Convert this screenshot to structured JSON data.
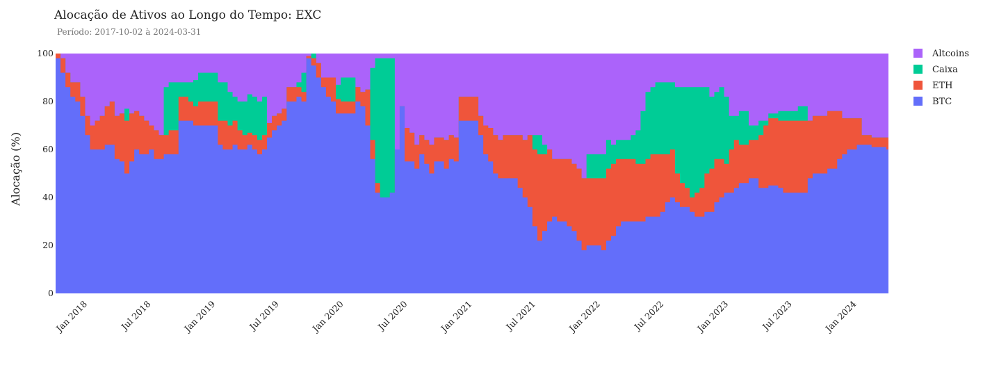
{
  "chart_data": {
    "type": "area",
    "stacked": true,
    "step": true,
    "title": "Alocação de Ativos ao Longo do Tempo: EXC",
    "subtitle": "Período: 2017-10-02 à 2024-03-31",
    "xlabel": "",
    "ylabel": "Alocação (%)",
    "xlim": [
      "2017-10-02",
      "2024-03-31"
    ],
    "ylim": [
      0,
      100
    ],
    "yticks": [
      0,
      20,
      40,
      60,
      80,
      100
    ],
    "xticks": [
      {
        "date": "2018-01-01",
        "label": "Jan 2018"
      },
      {
        "date": "2018-07-01",
        "label": "Jul 2018"
      },
      {
        "date": "2019-01-01",
        "label": "Jan 2019"
      },
      {
        "date": "2019-07-01",
        "label": "Jul 2019"
      },
      {
        "date": "2020-01-01",
        "label": "Jan 2020"
      },
      {
        "date": "2020-07-01",
        "label": "Jul 2020"
      },
      {
        "date": "2021-01-01",
        "label": "Jan 2021"
      },
      {
        "date": "2021-07-01",
        "label": "Jul 2021"
      },
      {
        "date": "2022-01-01",
        "label": "Jan 2022"
      },
      {
        "date": "2022-07-01",
        "label": "Jul 2022"
      },
      {
        "date": "2023-01-01",
        "label": "Jan 2023"
      },
      {
        "date": "2023-07-01",
        "label": "Jul 2023"
      },
      {
        "date": "2024-01-01",
        "label": "Jan 2024"
      }
    ],
    "legend": {
      "placement": "top-right",
      "order": [
        "Altcoins",
        "Caixa",
        "ETH",
        "BTC"
      ]
    },
    "colors": {
      "BTC": "#636efa",
      "ETH": "#ef553b",
      "Caixa": "#00cc96",
      "Altcoins": "#ab63fa"
    },
    "dates": [
      "2017-10-02",
      "2017-10-16",
      "2017-10-30",
      "2017-11-13",
      "2017-11-27",
      "2017-12-11",
      "2017-12-25",
      "2018-01-08",
      "2018-01-22",
      "2018-02-05",
      "2018-02-19",
      "2018-03-05",
      "2018-03-19",
      "2018-04-02",
      "2018-04-16",
      "2018-04-30",
      "2018-05-14",
      "2018-05-28",
      "2018-06-11",
      "2018-06-25",
      "2018-07-09",
      "2018-07-23",
      "2018-08-06",
      "2018-08-20",
      "2018-09-03",
      "2018-09-17",
      "2018-10-01",
      "2018-10-15",
      "2018-10-29",
      "2018-11-12",
      "2018-11-26",
      "2018-12-10",
      "2018-12-24",
      "2019-01-07",
      "2019-01-21",
      "2019-02-04",
      "2019-02-18",
      "2019-03-04",
      "2019-03-18",
      "2019-04-01",
      "2019-04-15",
      "2019-04-29",
      "2019-05-13",
      "2019-05-27",
      "2019-06-10",
      "2019-06-24",
      "2019-07-08",
      "2019-07-22",
      "2019-08-05",
      "2019-08-19",
      "2019-09-02",
      "2019-09-16",
      "2019-09-30",
      "2019-10-14",
      "2019-10-28",
      "2019-11-11",
      "2019-11-25",
      "2019-12-09",
      "2019-12-23",
      "2020-01-06",
      "2020-01-20",
      "2020-02-03",
      "2020-02-17",
      "2020-03-02",
      "2020-03-16",
      "2020-03-30",
      "2020-04-13",
      "2020-04-27",
      "2020-05-11",
      "2020-05-25",
      "2020-06-08",
      "2020-06-22",
      "2020-07-06",
      "2020-07-20",
      "2020-08-03",
      "2020-08-17",
      "2020-08-31",
      "2020-09-14",
      "2020-09-28",
      "2020-10-12",
      "2020-10-26",
      "2020-11-09",
      "2020-11-23",
      "2020-12-07",
      "2020-12-21",
      "2021-01-04",
      "2021-01-18",
      "2021-02-01",
      "2021-02-15",
      "2021-03-01",
      "2021-03-15",
      "2021-03-29",
      "2021-04-12",
      "2021-04-26",
      "2021-05-10",
      "2021-05-24",
      "2021-06-07",
      "2021-06-21",
      "2021-07-05",
      "2021-07-19",
      "2021-08-02",
      "2021-08-16",
      "2021-08-30",
      "2021-09-13",
      "2021-09-27",
      "2021-10-11",
      "2021-10-25",
      "2021-11-08",
      "2021-11-22",
      "2021-12-06",
      "2021-12-20",
      "2022-01-03",
      "2022-01-17",
      "2022-01-31",
      "2022-02-14",
      "2022-02-28",
      "2022-03-14",
      "2022-03-28",
      "2022-04-11",
      "2022-04-25",
      "2022-05-09",
      "2022-05-23",
      "2022-06-06",
      "2022-06-20",
      "2022-07-04",
      "2022-07-18",
      "2022-08-01",
      "2022-08-15",
      "2022-08-29",
      "2022-09-12",
      "2022-09-26",
      "2022-10-10",
      "2022-10-24",
      "2022-11-07",
      "2022-11-21",
      "2022-12-05",
      "2022-12-19",
      "2023-01-02",
      "2023-01-16",
      "2023-01-30",
      "2023-02-13",
      "2023-02-27",
      "2023-03-13",
      "2023-03-27",
      "2023-04-10",
      "2023-04-24",
      "2023-05-08",
      "2023-05-22",
      "2023-06-05",
      "2023-06-19",
      "2023-07-03",
      "2023-07-17",
      "2023-07-31",
      "2023-08-14",
      "2023-08-28",
      "2023-09-11",
      "2023-09-25",
      "2023-10-09",
      "2023-10-23",
      "2023-11-06",
      "2023-11-20",
      "2023-12-04",
      "2023-12-18",
      "2024-01-01",
      "2024-01-15",
      "2024-01-29",
      "2024-02-12",
      "2024-02-26",
      "2024-03-11",
      "2024-03-25"
    ],
    "series": [
      {
        "name": "BTC",
        "values": [
          98,
          92,
          86,
          82,
          80,
          74,
          66,
          60,
          60,
          60,
          62,
          62,
          56,
          55,
          50,
          55,
          60,
          58,
          58,
          60,
          56,
          56,
          58,
          58,
          58,
          72,
          72,
          72,
          70,
          70,
          70,
          70,
          70,
          62,
          60,
          60,
          62,
          60,
          60,
          62,
          60,
          58,
          60,
          65,
          68,
          70,
          72,
          80,
          80,
          82,
          80,
          98,
          95,
          90,
          86,
          82,
          80,
          75,
          75,
          75,
          75,
          80,
          78,
          70,
          56,
          42,
          40,
          40,
          42,
          60,
          78,
          55,
          55,
          52,
          58,
          54,
          50,
          55,
          55,
          52,
          56,
          55,
          72,
          72,
          72,
          72,
          66,
          58,
          55,
          50,
          48,
          48,
          48,
          48,
          44,
          40,
          36,
          28,
          22,
          26,
          30,
          32,
          30,
          30,
          28,
          26,
          22,
          18,
          20,
          20,
          20,
          18,
          22,
          24,
          28,
          30,
          30,
          30,
          30,
          30,
          32,
          32,
          32,
          34,
          38,
          40,
          38,
          36,
          36,
          34,
          32,
          32,
          34,
          34,
          38,
          40,
          42,
          42,
          44,
          46,
          46,
          48,
          48,
          44,
          44,
          45,
          45,
          44,
          42,
          42,
          42,
          42,
          42,
          48,
          50,
          50,
          50,
          52,
          52,
          56,
          58,
          60,
          60,
          62,
          62,
          62,
          61,
          61,
          61,
          60
        ]
      },
      {
        "name": "ETH",
        "values": [
          2,
          6,
          6,
          6,
          8,
          8,
          8,
          10,
          12,
          14,
          16,
          18,
          18,
          20,
          22,
          20,
          16,
          16,
          14,
          10,
          12,
          10,
          8,
          10,
          10,
          10,
          10,
          8,
          8,
          10,
          10,
          10,
          10,
          10,
          12,
          10,
          10,
          8,
          6,
          5,
          6,
          6,
          6,
          6,
          6,
          5,
          5,
          6,
          6,
          4,
          4,
          1,
          3,
          6,
          4,
          8,
          10,
          6,
          5,
          5,
          5,
          6,
          6,
          15,
          8,
          4,
          0,
          0,
          0,
          0,
          0,
          14,
          12,
          10,
          8,
          10,
          12,
          10,
          10,
          12,
          10,
          10,
          10,
          10,
          10,
          10,
          8,
          12,
          14,
          16,
          16,
          18,
          18,
          18,
          22,
          24,
          30,
          32,
          36,
          32,
          30,
          24,
          26,
          26,
          28,
          28,
          30,
          30,
          28,
          28,
          28,
          30,
          30,
          30,
          28,
          26,
          26,
          26,
          24,
          24,
          24,
          26,
          26,
          24,
          20,
          20,
          12,
          10,
          8,
          6,
          10,
          12,
          16,
          18,
          18,
          16,
          12,
          18,
          20,
          16,
          16,
          16,
          16,
          22,
          26,
          28,
          28,
          28,
          30,
          30,
          30,
          30,
          30,
          24,
          24,
          24,
          24,
          24,
          24,
          20,
          15,
          13,
          13,
          11,
          4,
          4,
          4,
          4,
          4,
          5
        ]
      },
      {
        "name": "Caixa",
        "values": [
          0,
          0,
          0,
          0,
          0,
          0,
          0,
          0,
          0,
          0,
          0,
          0,
          0,
          0,
          5,
          0,
          0,
          0,
          0,
          0,
          0,
          0,
          20,
          20,
          20,
          6,
          6,
          8,
          11,
          12,
          12,
          12,
          12,
          16,
          16,
          14,
          10,
          12,
          14,
          16,
          16,
          16,
          16,
          0,
          0,
          0,
          0,
          0,
          0,
          2,
          8,
          0,
          4,
          0,
          0,
          0,
          0,
          6,
          10,
          10,
          10,
          0,
          0,
          0,
          30,
          52,
          58,
          58,
          56,
          0,
          0,
          0,
          0,
          0,
          0,
          0,
          0,
          0,
          0,
          0,
          0,
          0,
          0,
          0,
          0,
          0,
          0,
          0,
          0,
          0,
          0,
          0,
          0,
          0,
          0,
          0,
          0,
          6,
          8,
          4,
          0,
          0,
          0,
          0,
          0,
          0,
          0,
          0,
          10,
          10,
          10,
          10,
          12,
          8,
          8,
          8,
          8,
          10,
          14,
          22,
          28,
          28,
          30,
          30,
          30,
          28,
          36,
          40,
          42,
          46,
          44,
          42,
          36,
          30,
          28,
          30,
          28,
          14,
          10,
          14,
          14,
          6,
          6,
          6,
          2,
          2,
          2,
          4,
          4,
          4,
          4,
          6,
          6,
          0,
          0,
          0,
          0,
          0,
          0,
          0,
          0,
          0,
          0,
          0,
          0,
          0,
          0,
          0,
          0,
          0
        ]
      }
    ],
    "remainder_series": "Altcoins"
  }
}
